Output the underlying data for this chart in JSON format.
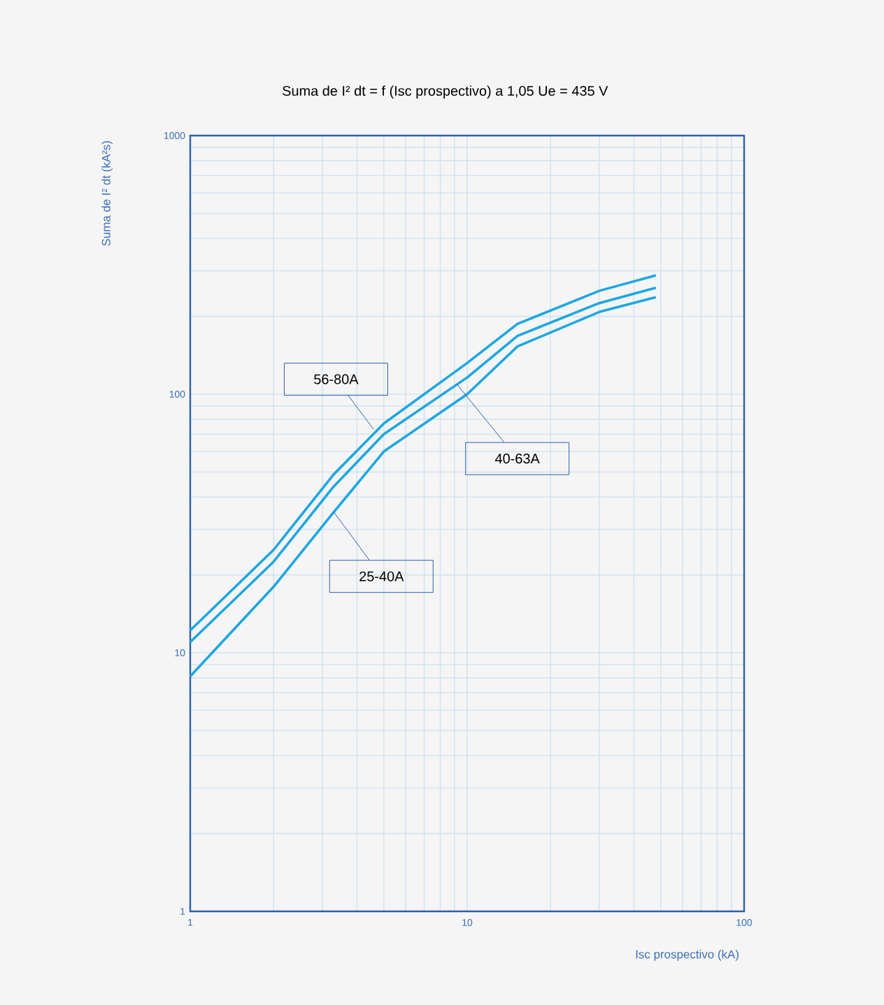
{
  "chart_data": {
    "type": "line",
    "title": "Suma de I² dt = f (Isc prospectivo) a 1,05 Ue = 435 V",
    "xlabel": "Isc prospectivo (kA)",
    "ylabel": "Suma de I² dt (kA²s)",
    "x": [
      1,
      2,
      3.3,
      5,
      10,
      15.2,
      30,
      48
    ],
    "series": [
      {
        "color": "#1ea7e1",
        "values": [
          12.2,
          25,
          49,
          77,
          132,
          187,
          251,
          288
        ]
      },
      {
        "color": "#1ea7e1",
        "values": [
          11,
          22.5,
          44,
          70,
          116,
          168,
          225,
          258
        ]
      },
      {
        "color": "#1ea7e1",
        "values": [
          8.1,
          18,
          35,
          60,
          100,
          153,
          208,
          237
        ]
      }
    ],
    "annotations": [
      {
        "text": "56-80A",
        "x": 4.6,
        "y": 73
      },
      {
        "text": "40-63A",
        "x": 9.2,
        "y": 109
      },
      {
        "text": "25-40A",
        "x": 3.3,
        "y": 35
      }
    ],
    "log": "xy",
    "xlim": [
      1,
      100
    ],
    "ylim": [
      1,
      1000
    ],
    "xticks": [
      1,
      10,
      100
    ],
    "yticks": [
      1,
      10,
      100,
      1000
    ],
    "grid": true,
    "line_style": "solid"
  }
}
